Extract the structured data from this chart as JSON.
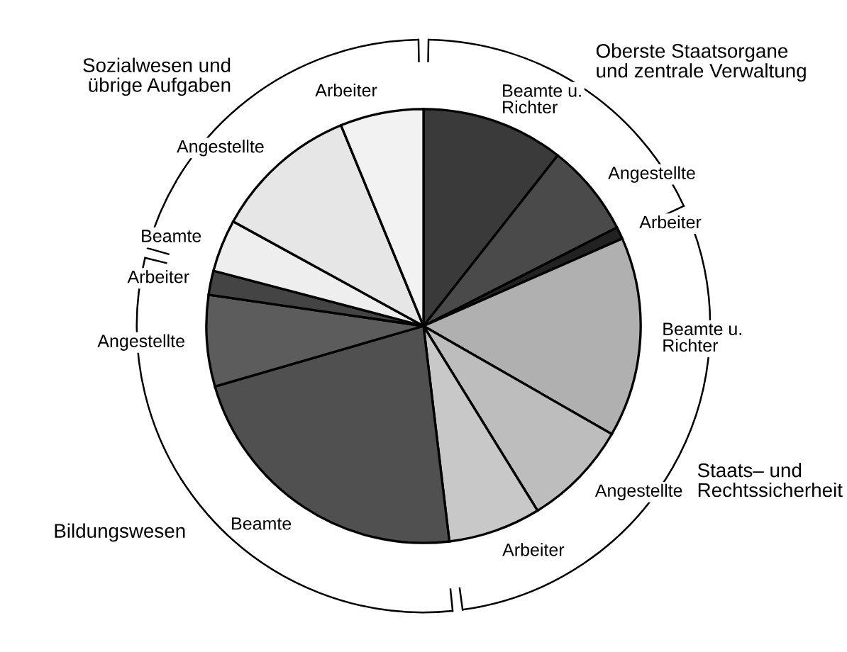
{
  "chart_data": {
    "type": "pie",
    "categories": [
      "Beamte u.\nRichter",
      "Angestellte",
      "Arbeiter",
      "Beamte u.\nRichter",
      "Angestellte",
      "Arbeiter",
      "Beamte",
      "Angestellte",
      "Arbeiter",
      "Beamte",
      "Angestellte",
      "Arbeiter"
    ],
    "values": [
      10.6,
      6.9,
      0.9,
      14.9,
      7.9,
      6.9,
      22.4,
      6.8,
      1.8,
      3.9,
      10.8,
      6.2
    ],
    "colors": [
      "#3a3a3a",
      "#4a4a4a",
      "#222222",
      "#b0b0b0",
      "#bdbdbd",
      "#c8c8c8",
      "#505050",
      "#5c5c5c",
      "#444444",
      "#eeeeee",
      "#e6e6e6",
      "#f2f2f2"
    ],
    "annotations": [
      "Oberste Staatsorgane\nund zentrale Verwaltung",
      "Staats– und\nRechtssicherheit",
      "Bildungswesen",
      "Sozialwesen und\nübrige Aufgaben"
    ]
  }
}
